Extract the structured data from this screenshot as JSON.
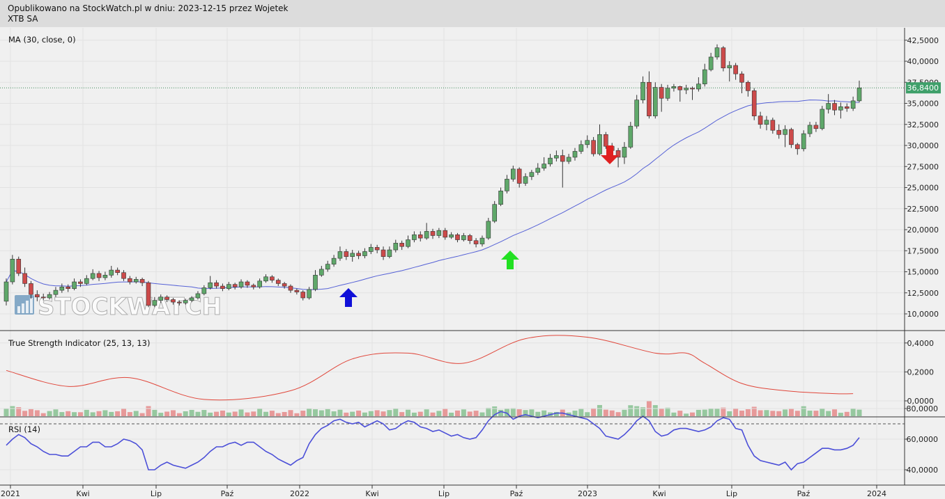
{
  "header": {
    "published": "Opublikowano na StockWatch.pl w dniu: 2023-12-15 przez Wojetek",
    "ticker": "XTB SA"
  },
  "watermark": "STOCKWATCH",
  "colors": {
    "up": "#5fa86a",
    "down": "#cc4a4a",
    "ma": "#5561d6",
    "tsi": "#e0463a",
    "rsi": "#4b4fd8",
    "background": "#f0f0f0"
  },
  "chart_data": [
    {
      "type": "candlestick",
      "title": "MA (30, close, 0)",
      "ylim": [
        9000,
        43500
      ],
      "y_ticks": [
        "10,0000",
        "12,5000",
        "15,0000",
        "17,5000",
        "20,0000",
        "22,5000",
        "25,0000",
        "27,5000",
        "30,0000",
        "32,5000",
        "35,0000",
        "37,5000",
        "40,0000",
        "42,5000"
      ],
      "last_price_label": "36,8400",
      "last_price": 36.84,
      "x_ticks": [
        "2021",
        "Kwi",
        "Lip",
        "Paź",
        "2022",
        "Kwi",
        "Lip",
        "Paź",
        "2023",
        "Kwi",
        "Lip",
        "Paź",
        "2024"
      ],
      "candles": [
        [
          11.5,
          13.8,
          11.0,
          14.2
        ],
        [
          13.8,
          16.5,
          13.5,
          17.0
        ],
        [
          16.5,
          14.8,
          14.5,
          16.8
        ],
        [
          14.8,
          13.6,
          13.2,
          15.5
        ],
        [
          13.6,
          12.3,
          11.8,
          13.9
        ],
        [
          12.3,
          12.0,
          11.5,
          12.8
        ],
        [
          12.0,
          11.9,
          11.6,
          12.4
        ],
        [
          11.9,
          12.3,
          11.7,
          12.6
        ],
        [
          12.3,
          12.8,
          12.0,
          13.2
        ],
        [
          12.8,
          13.2,
          12.5,
          13.6
        ],
        [
          13.2,
          13.0,
          12.6,
          13.5
        ],
        [
          13.0,
          13.8,
          12.8,
          14.2
        ],
        [
          13.8,
          13.6,
          13.2,
          14.1
        ],
        [
          13.6,
          14.2,
          13.4,
          14.6
        ],
        [
          14.2,
          14.8,
          14.0,
          15.3
        ],
        [
          14.8,
          14.3,
          13.9,
          15.1
        ],
        [
          14.3,
          14.6,
          14.0,
          15.0
        ],
        [
          14.6,
          15.2,
          14.3,
          15.7
        ],
        [
          15.2,
          14.9,
          14.6,
          15.5
        ],
        [
          14.9,
          14.2,
          13.9,
          15.2
        ],
        [
          14.2,
          13.8,
          13.5,
          14.5
        ],
        [
          13.8,
          14.1,
          13.6,
          14.4
        ],
        [
          14.1,
          13.7,
          13.3,
          14.3
        ],
        [
          13.7,
          11.0,
          10.8,
          13.9
        ],
        [
          11.0,
          11.6,
          10.8,
          12.0
        ],
        [
          11.6,
          12.0,
          11.3,
          12.3
        ],
        [
          12.0,
          11.7,
          11.4,
          12.2
        ],
        [
          11.7,
          11.4,
          11.1,
          11.9
        ],
        [
          11.4,
          11.3,
          11.0,
          11.6
        ],
        [
          11.3,
          11.6,
          11.1,
          11.8
        ],
        [
          11.6,
          11.9,
          11.4,
          12.1
        ],
        [
          11.9,
          12.4,
          11.7,
          12.7
        ],
        [
          12.4,
          13.1,
          12.2,
          13.4
        ],
        [
          13.1,
          13.7,
          12.9,
          14.5
        ],
        [
          13.7,
          13.3,
          13.0,
          14.0
        ],
        [
          13.3,
          13.0,
          12.7,
          13.6
        ],
        [
          13.0,
          13.5,
          12.8,
          13.8
        ],
        [
          13.5,
          13.2,
          12.9,
          13.7
        ],
        [
          13.2,
          13.8,
          13.0,
          14.1
        ],
        [
          13.8,
          13.4,
          13.1,
          14.0
        ],
        [
          13.4,
          13.2,
          12.9,
          13.6
        ],
        [
          13.2,
          13.9,
          13.0,
          14.2
        ],
        [
          13.9,
          14.4,
          13.7,
          14.7
        ],
        [
          14.4,
          14.0,
          13.7,
          14.6
        ],
        [
          14.0,
          13.6,
          13.3,
          14.2
        ],
        [
          13.6,
          13.3,
          13.0,
          13.8
        ],
        [
          13.3,
          12.8,
          12.5,
          13.5
        ],
        [
          12.8,
          12.6,
          12.3,
          13.0
        ],
        [
          12.6,
          11.9,
          11.6,
          12.8
        ],
        [
          11.9,
          12.9,
          11.7,
          13.2
        ],
        [
          12.9,
          14.6,
          12.7,
          15.2
        ],
        [
          14.6,
          15.3,
          14.4,
          15.7
        ],
        [
          15.3,
          15.9,
          15.0,
          16.3
        ],
        [
          15.9,
          16.6,
          15.6,
          17.0
        ],
        [
          16.6,
          17.4,
          16.3,
          18.0
        ],
        [
          17.4,
          16.8,
          16.4,
          17.7
        ],
        [
          16.8,
          17.2,
          16.2,
          17.6
        ],
        [
          17.2,
          16.9,
          16.5,
          17.5
        ],
        [
          16.9,
          17.4,
          16.6,
          17.8
        ],
        [
          17.4,
          17.9,
          17.1,
          18.3
        ],
        [
          17.9,
          17.6,
          17.2,
          18.2
        ],
        [
          17.6,
          16.8,
          16.4,
          18.0
        ],
        [
          16.8,
          17.6,
          16.6,
          18.0
        ],
        [
          17.6,
          18.4,
          17.3,
          18.8
        ],
        [
          18.4,
          18.0,
          17.6,
          18.7
        ],
        [
          18.0,
          18.8,
          17.8,
          19.3
        ],
        [
          18.8,
          19.4,
          18.5,
          19.8
        ],
        [
          19.4,
          19.0,
          18.6,
          19.8
        ],
        [
          19.0,
          19.8,
          18.8,
          20.8
        ],
        [
          19.8,
          19.3,
          18.9,
          20.1
        ],
        [
          19.3,
          19.9,
          19.0,
          20.2
        ],
        [
          19.9,
          19.1,
          18.8,
          20.2
        ],
        [
          19.1,
          19.4,
          18.9,
          19.7
        ],
        [
          19.4,
          18.8,
          18.5,
          19.6
        ],
        [
          18.8,
          19.3,
          18.6,
          19.6
        ],
        [
          19.3,
          18.7,
          18.3,
          19.5
        ],
        [
          18.7,
          18.3,
          17.9,
          19.0
        ],
        [
          18.3,
          19.0,
          18.0,
          19.3
        ],
        [
          19.0,
          21.0,
          18.8,
          21.4
        ],
        [
          21.0,
          23.0,
          20.8,
          23.4
        ],
        [
          23.0,
          24.6,
          22.8,
          25.0
        ],
        [
          24.6,
          26.0,
          24.3,
          26.5
        ],
        [
          26.0,
          27.2,
          25.7,
          27.6
        ],
        [
          27.2,
          25.5,
          25.0,
          27.4
        ],
        [
          25.5,
          26.3,
          25.2,
          26.7
        ],
        [
          26.3,
          26.8,
          25.9,
          27.1
        ],
        [
          26.8,
          27.3,
          26.5,
          27.9
        ],
        [
          27.3,
          27.8,
          27.0,
          28.6
        ],
        [
          27.8,
          28.5,
          27.5,
          29.0
        ],
        [
          28.5,
          28.8,
          28.1,
          29.4
        ],
        [
          28.8,
          28.1,
          25.0,
          29.5
        ],
        [
          28.1,
          28.6,
          27.8,
          29.0
        ],
        [
          28.6,
          29.3,
          28.2,
          29.7
        ],
        [
          29.3,
          30.1,
          29.0,
          30.6
        ],
        [
          30.1,
          30.6,
          29.7,
          31.2
        ],
        [
          30.6,
          29.0,
          28.7,
          31.0
        ],
        [
          29.0,
          31.3,
          28.8,
          32.5
        ],
        [
          31.3,
          29.9,
          29.6,
          31.6
        ],
        [
          29.9,
          29.4,
          28.9,
          30.3
        ],
        [
          29.4,
          28.6,
          27.4,
          29.7
        ],
        [
          28.6,
          29.8,
          27.8,
          30.4
        ],
        [
          29.8,
          32.3,
          29.6,
          32.8
        ],
        [
          32.3,
          35.4,
          32.0,
          36.0
        ],
        [
          35.4,
          37.5,
          35.0,
          38.2
        ],
        [
          37.5,
          33.5,
          33.2,
          38.8
        ],
        [
          33.5,
          36.9,
          33.2,
          37.5
        ],
        [
          36.9,
          35.6,
          34.0,
          37.3
        ],
        [
          35.6,
          36.8,
          35.3,
          37.2
        ],
        [
          36.8,
          37.0,
          36.4,
          37.3
        ],
        [
          37.0,
          36.6,
          35.2,
          37.1
        ],
        [
          36.6,
          36.8,
          36.1,
          37.2
        ],
        [
          36.8,
          36.7,
          35.4,
          37.0
        ],
        [
          36.7,
          37.3,
          36.4,
          38.1
        ],
        [
          37.3,
          39.0,
          37.0,
          39.7
        ],
        [
          39.0,
          40.5,
          38.8,
          41.0
        ],
        [
          40.5,
          41.6,
          40.2,
          42.0
        ],
        [
          41.6,
          39.2,
          38.8,
          41.8
        ],
        [
          39.2,
          39.5,
          37.6,
          40.0
        ],
        [
          39.5,
          38.5,
          37.8,
          39.8
        ],
        [
          38.5,
          37.5,
          36.2,
          38.8
        ],
        [
          37.5,
          36.5,
          35.8,
          37.7
        ],
        [
          36.5,
          33.5,
          33.0,
          36.8
        ],
        [
          33.5,
          32.5,
          32.0,
          34.0
        ],
        [
          32.5,
          33.0,
          31.8,
          33.5
        ],
        [
          33.0,
          31.8,
          31.4,
          33.3
        ],
        [
          31.8,
          31.3,
          30.8,
          32.5
        ],
        [
          31.3,
          31.9,
          29.8,
          32.4
        ],
        [
          31.9,
          30.1,
          29.7,
          32.1
        ],
        [
          30.1,
          29.6,
          28.9,
          30.3
        ],
        [
          29.6,
          31.4,
          29.3,
          31.8
        ],
        [
          31.4,
          32.4,
          31.0,
          32.8
        ],
        [
          32.4,
          32.0,
          31.6,
          32.8
        ],
        [
          32.0,
          34.3,
          31.8,
          34.7
        ],
        [
          34.3,
          35.0,
          33.8,
          36.1
        ],
        [
          35.0,
          34.2,
          33.6,
          35.4
        ],
        [
          34.2,
          34.6,
          33.2,
          35.1
        ],
        [
          34.6,
          34.4,
          34.0,
          35.0
        ],
        [
          34.4,
          35.3,
          34.1,
          35.8
        ],
        [
          35.3,
          36.84,
          35.1,
          37.7
        ]
      ]
    },
    {
      "type": "line",
      "title": "True Strength Indicator (25, 13, 13)",
      "ylim": [
        -0.02,
        0.45
      ],
      "y_ticks": [
        "0,4000",
        "0,2000",
        "0,0000"
      ],
      "x": [
        0,
        10,
        20,
        32,
        46,
        56,
        65,
        74,
        84,
        94,
        105,
        110,
        113,
        119,
        126,
        134,
        137
      ],
      "values": [
        0.21,
        0.1,
        0.16,
        0.01,
        0.07,
        0.29,
        0.33,
        0.26,
        0.43,
        0.44,
        0.33,
        0.33,
        0.26,
        0.12,
        0.07,
        0.05,
        0.05
      ]
    },
    {
      "type": "line",
      "title": "RSI (14)",
      "ylim": [
        29,
        82
      ],
      "y_ticks": [
        "80,0000",
        "60,0000",
        "40,0000"
      ],
      "values": [
        56,
        60,
        63,
        61,
        57,
        55,
        52,
        50,
        50,
        49,
        49,
        52,
        55,
        55,
        58,
        58,
        55,
        55,
        57,
        60,
        59,
        57,
        53,
        40,
        40,
        43,
        45,
        43,
        42,
        41,
        43,
        45,
        48,
        52,
        55,
        55,
        57,
        58,
        56,
        58,
        58,
        55,
        52,
        50,
        47,
        45,
        43,
        46,
        48,
        57,
        63,
        67,
        69,
        72,
        73,
        71,
        70,
        71,
        68,
        70,
        72,
        70,
        66,
        67,
        70,
        72,
        71,
        68,
        67,
        65,
        66,
        64,
        62,
        63,
        61,
        60,
        61,
        66,
        72,
        76,
        78,
        77,
        73,
        75,
        76,
        75,
        74,
        75,
        76,
        77,
        77,
        76,
        75,
        74,
        73,
        70,
        67,
        62,
        61,
        60,
        63,
        67,
        72,
        75,
        72,
        65,
        62,
        63,
        66,
        67,
        67,
        66,
        65,
        66,
        68,
        72,
        74,
        73,
        67,
        66,
        56,
        49,
        46,
        45,
        44,
        43,
        45,
        40,
        44,
        45,
        48,
        51,
        54,
        54,
        53,
        53,
        54,
        56,
        61
      ]
    }
  ]
}
